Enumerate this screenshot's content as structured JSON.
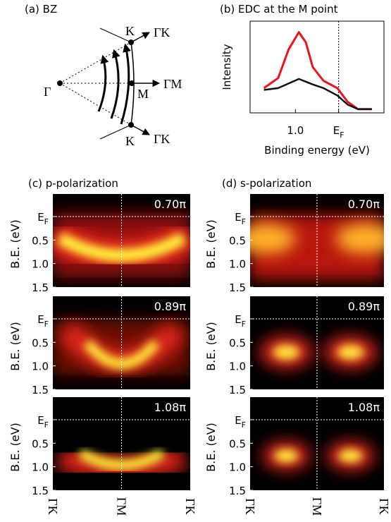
{
  "bz": {
    "label": "(a) BZ",
    "gamma": "Γ",
    "m": "M",
    "k_top": "K",
    "k_bottom": "K",
    "directions": [
      "ΓK",
      "ΓM",
      "ΓK"
    ]
  },
  "chart_data": {
    "type": "line",
    "title": "(b) EDC at the M point",
    "x_label": "Binding energy (eV)",
    "y_label": "Intensity",
    "x": [
      1.73,
      1.4,
      1.16,
      0.92,
      0.76,
      0.6,
      0.35,
      0.03,
      -0.21,
      -0.45,
      -0.77
    ],
    "series": [
      {
        "color": "#e8141e",
        "values": [
          0.27,
          0.38,
          0.69,
          0.88,
          0.77,
          0.5,
          0.35,
          0.27,
          0.12,
          0.04,
          0.04
        ]
      },
      {
        "color": "#111111",
        "values": [
          0.25,
          0.27,
          0.32,
          0.37,
          0.34,
          0.31,
          0.27,
          0.19,
          0.09,
          0.04,
          0.04
        ]
      }
    ],
    "xlim": [
      2.05,
      -1.05
    ],
    "xticks": [
      {
        "value": 1,
        "label": "1.0"
      },
      {
        "value": 0,
        "label": "E",
        "sub": "F"
      }
    ],
    "ylim": [
      0,
      1
    ]
  },
  "arpes": {
    "y_label": "B.E. (eV)",
    "ylim": [
      -0.48,
      1.5
    ],
    "yticks": [
      {
        "value": 0,
        "label": "E",
        "sub": "F"
      },
      0.5,
      {
        "value": 1,
        "label": "1.0"
      },
      1.5
    ],
    "x_labels": [
      "ΓK",
      "ΓM",
      "ΓK"
    ],
    "columns": [
      {
        "label": "(c) p-polarization",
        "panels": [
          "0.70π",
          "0.89π",
          "1.08π"
        ]
      },
      {
        "label": "(d) s-polarization",
        "panels": [
          "0.70π",
          "0.89π",
          "1.08π"
        ]
      }
    ]
  }
}
